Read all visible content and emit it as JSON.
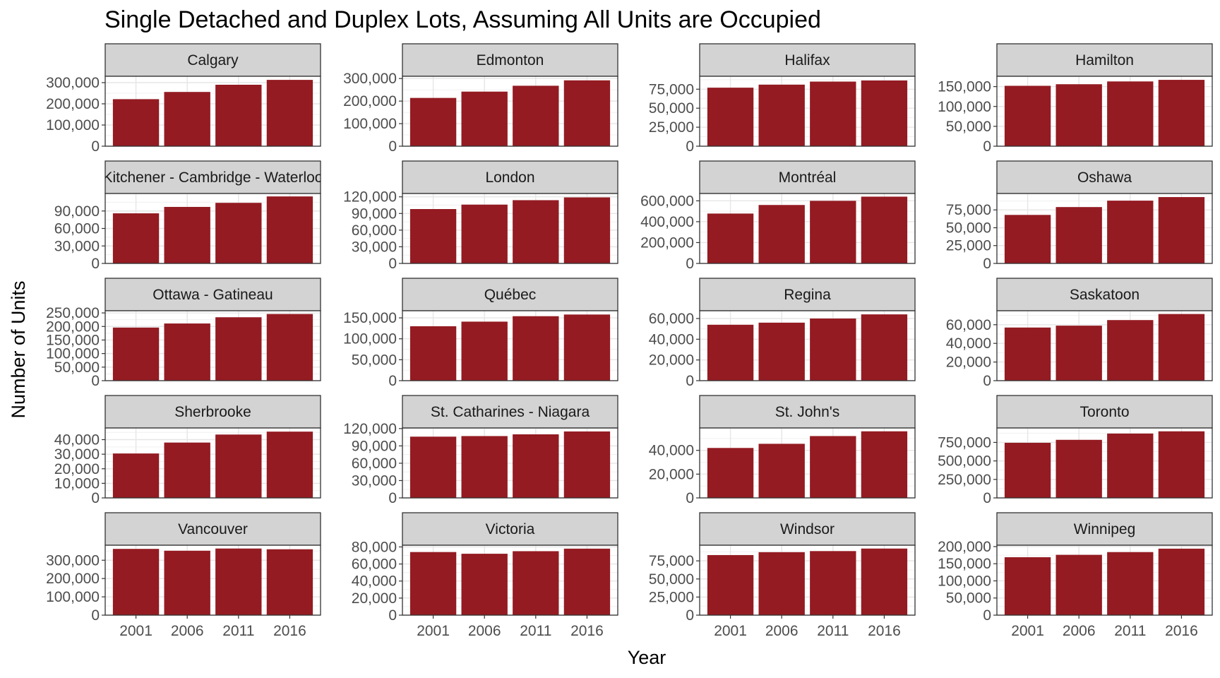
{
  "chart_data": {
    "type": "bar",
    "title": "Single Detached and Duplex Lots, Assuming All Units are Occupied",
    "xlabel": "Year",
    "ylabel": "Number of Units",
    "categories": [
      "2001",
      "2006",
      "2011",
      "2016"
    ],
    "bar_color": "#941b22",
    "strip_color": "#d3d3d3",
    "panels": [
      {
        "name": "Calgary",
        "values": [
          222000,
          256000,
          290000,
          313000
        ],
        "ylim": [
          0,
          330000
        ],
        "ticks": [
          0,
          100000,
          200000,
          300000
        ],
        "tick_labels": [
          "0",
          "100,000",
          "200,000",
          "300,000"
        ]
      },
      {
        "name": "Edmonton",
        "values": [
          214000,
          242000,
          268000,
          292000
        ],
        "ylim": [
          0,
          310000
        ],
        "ticks": [
          0,
          100000,
          200000,
          300000
        ],
        "tick_labels": [
          "0",
          "100,000",
          "200,000",
          "300,000"
        ]
      },
      {
        "name": "Halifax",
        "values": [
          77000,
          81000,
          85000,
          86500
        ],
        "ylim": [
          0,
          92000
        ],
        "ticks": [
          0,
          25000,
          50000,
          75000
        ],
        "tick_labels": [
          "0",
          "25,000",
          "50,000",
          "75,000"
        ]
      },
      {
        "name": "Hamilton",
        "values": [
          152000,
          156000,
          163000,
          167000
        ],
        "ylim": [
          0,
          176000
        ],
        "ticks": [
          0,
          50000,
          100000,
          150000
        ],
        "tick_labels": [
          "0",
          "50,000",
          "100,000",
          "150,000"
        ]
      },
      {
        "name": "Kitchener - Cambridge - Waterloo",
        "values": [
          86000,
          97000,
          104000,
          115000
        ],
        "ylim": [
          0,
          120000
        ],
        "ticks": [
          0,
          30000,
          60000,
          90000
        ],
        "tick_labels": [
          "0",
          "30,000",
          "60,000",
          "90,000"
        ]
      },
      {
        "name": "London",
        "values": [
          98000,
          106000,
          114000,
          119000
        ],
        "ylim": [
          0,
          126000
        ],
        "ticks": [
          0,
          30000,
          60000,
          90000,
          120000
        ],
        "tick_labels": [
          "0",
          "30,000",
          "60,000",
          "90,000",
          "120,000"
        ]
      },
      {
        "name": "Montréal",
        "values": [
          478000,
          560000,
          600000,
          640000
        ],
        "ylim": [
          0,
          670000
        ],
        "ticks": [
          0,
          200000,
          400000,
          600000
        ],
        "tick_labels": [
          "0",
          "200,000",
          "400,000",
          "600,000"
        ]
      },
      {
        "name": "Oshawa",
        "values": [
          68000,
          79000,
          88000,
          93000
        ],
        "ylim": [
          0,
          98000
        ],
        "ticks": [
          0,
          25000,
          50000,
          75000
        ],
        "tick_labels": [
          "0",
          "25,000",
          "50,000",
          "75,000"
        ]
      },
      {
        "name": "Ottawa - Gatineau",
        "values": [
          196000,
          211000,
          234000,
          246000
        ],
        "ylim": [
          0,
          258000
        ],
        "ticks": [
          0,
          50000,
          100000,
          150000,
          200000,
          250000
        ],
        "tick_labels": [
          "0",
          "50,000",
          "100,000",
          "150,000",
          "200,000",
          "250,000"
        ]
      },
      {
        "name": "Québec",
        "values": [
          130000,
          141000,
          154000,
          158000
        ],
        "ylim": [
          0,
          167000
        ],
        "ticks": [
          0,
          50000,
          100000,
          150000
        ],
        "tick_labels": [
          "0",
          "50,000",
          "100,000",
          "150,000"
        ]
      },
      {
        "name": "Regina",
        "values": [
          54000,
          56000,
          60000,
          64000
        ],
        "ylim": [
          0,
          67500
        ],
        "ticks": [
          0,
          20000,
          40000,
          60000
        ],
        "tick_labels": [
          "0",
          "20,000",
          "40,000",
          "60,000"
        ]
      },
      {
        "name": "Saskatoon",
        "values": [
          57000,
          59000,
          65000,
          71500
        ],
        "ylim": [
          0,
          75000
        ],
        "ticks": [
          0,
          20000,
          40000,
          60000
        ],
        "tick_labels": [
          "0",
          "20,000",
          "40,000",
          "60,000"
        ]
      },
      {
        "name": "Sherbrooke",
        "values": [
          30500,
          38000,
          43500,
          45500
        ],
        "ylim": [
          0,
          48000
        ],
        "ticks": [
          0,
          10000,
          20000,
          30000,
          40000
        ],
        "tick_labels": [
          "0",
          "10,000",
          "20,000",
          "30,000",
          "40,000"
        ]
      },
      {
        "name": "St. Catharines - Niagara",
        "values": [
          106000,
          107000,
          110000,
          115000
        ],
        "ylim": [
          0,
          121000
        ],
        "ticks": [
          0,
          30000,
          60000,
          90000,
          120000
        ],
        "tick_labels": [
          "0",
          "30,000",
          "60,000",
          "90,000",
          "120,000"
        ]
      },
      {
        "name": "St. John's",
        "values": [
          42000,
          45500,
          52000,
          56000
        ],
        "ylim": [
          0,
          58800
        ],
        "ticks": [
          0,
          20000,
          40000
        ],
        "tick_labels": [
          "0",
          "20,000",
          "40,000"
        ]
      },
      {
        "name": "Toronto",
        "values": [
          745000,
          785000,
          870000,
          900000
        ],
        "ylim": [
          0,
          945000
        ],
        "ticks": [
          0,
          250000,
          500000,
          750000
        ],
        "tick_labels": [
          "0",
          "250,000",
          "500,000",
          "750,000"
        ]
      },
      {
        "name": "Vancouver",
        "values": [
          362000,
          352000,
          364000,
          360000
        ],
        "ylim": [
          0,
          382000
        ],
        "ticks": [
          0,
          100000,
          200000,
          300000
        ],
        "tick_labels": [
          "0",
          "100,000",
          "200,000",
          "300,000"
        ]
      },
      {
        "name": "Victoria",
        "values": [
          74000,
          72000,
          75000,
          78000
        ],
        "ylim": [
          0,
          82000
        ],
        "ticks": [
          0,
          20000,
          40000,
          60000,
          80000
        ],
        "tick_labels": [
          "0",
          "20,000",
          "40,000",
          "60,000",
          "80,000"
        ]
      },
      {
        "name": "Windsor",
        "values": [
          83000,
          87000,
          88500,
          92000
        ],
        "ylim": [
          0,
          96600
        ],
        "ticks": [
          0,
          25000,
          50000,
          75000
        ],
        "tick_labels": [
          "0",
          "25,000",
          "50,000",
          "75,000"
        ]
      },
      {
        "name": "Winnipeg",
        "values": [
          169000,
          176000,
          184000,
          194000
        ],
        "ylim": [
          0,
          204000
        ],
        "ticks": [
          0,
          50000,
          100000,
          150000,
          200000
        ],
        "tick_labels": [
          "0",
          "50,000",
          "100,000",
          "150,000",
          "200,000"
        ]
      }
    ]
  }
}
